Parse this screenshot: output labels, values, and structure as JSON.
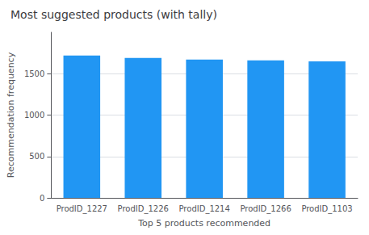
{
  "chart_data": {
    "type": "bar",
    "title": "Most suggested products (with tally)",
    "xlabel": "Top 5 products recommended",
    "ylabel": "Recommendation frequency",
    "categories": [
      "ProdID_1227",
      "ProdID_1226",
      "ProdID_1214",
      "ProdID_1266",
      "ProdID_1103"
    ],
    "values": [
      1720,
      1690,
      1670,
      1660,
      1650
    ],
    "color": "#2196F3",
    "ylim": [
      0,
      2000
    ],
    "yticks": [
      0,
      500,
      1000,
      1500
    ],
    "grid": true
  }
}
